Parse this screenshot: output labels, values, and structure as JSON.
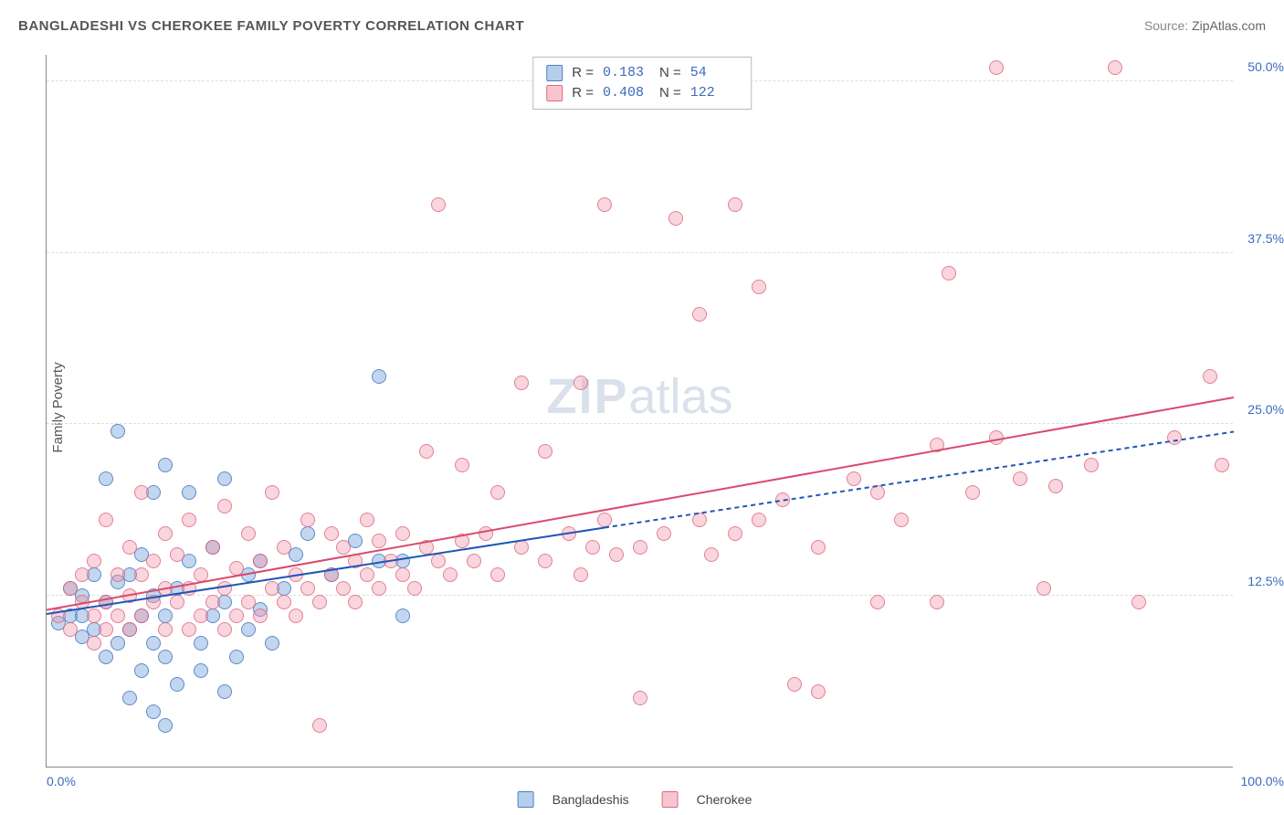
{
  "title": "BANGLADESHI VS CHEROKEE FAMILY POVERTY CORRELATION CHART",
  "source_label": "Source:",
  "source_value": "ZipAtlas.com",
  "watermark_zip": "ZIP",
  "watermark_atlas": "atlas",
  "ylabel": "Family Poverty",
  "chart": {
    "type": "scatter",
    "xlim": [
      0,
      100
    ],
    "ylim": [
      0,
      52
    ],
    "x_ticks": [
      {
        "value": 0,
        "label": "0.0%"
      },
      {
        "value": 100,
        "label": "100.0%"
      }
    ],
    "y_ticks": [
      {
        "value": 12.5,
        "label": "12.5%"
      },
      {
        "value": 25.0,
        "label": "25.0%"
      },
      {
        "value": 37.5,
        "label": "37.5%"
      },
      {
        "value": 50.0,
        "label": "50.0%"
      }
    ],
    "grid_color": "#dddddd",
    "axis_color": "#888888",
    "background_color": "#ffffff",
    "series": [
      {
        "name": "Bangladeshis",
        "color_fill": "rgba(120,165,220,0.45)",
        "color_stroke": "rgba(70,120,190,0.8)",
        "marker_radius": 8,
        "R": "0.183",
        "N": "54",
        "trend": {
          "x1": 0,
          "y1": 11.2,
          "x2": 47,
          "y2": 17.5,
          "x2_ext": 100,
          "y2_ext": 24.5,
          "color": "#1f56b5",
          "width": 2,
          "dash_ext": "5,4"
        },
        "points": [
          [
            1,
            10.5
          ],
          [
            2,
            11
          ],
          [
            2,
            13
          ],
          [
            3,
            9.5
          ],
          [
            3,
            11
          ],
          [
            3,
            12.5
          ],
          [
            4,
            10
          ],
          [
            4,
            14
          ],
          [
            5,
            8
          ],
          [
            5,
            12
          ],
          [
            5,
            21
          ],
          [
            6,
            9
          ],
          [
            6,
            13.5
          ],
          [
            6,
            24.5
          ],
          [
            7,
            5
          ],
          [
            7,
            10
          ],
          [
            7,
            14
          ],
          [
            8,
            7
          ],
          [
            8,
            11
          ],
          [
            8,
            15.5
          ],
          [
            9,
            4
          ],
          [
            9,
            9
          ],
          [
            9,
            12.5
          ],
          [
            9,
            20
          ],
          [
            10,
            3
          ],
          [
            10,
            8
          ],
          [
            10,
            11
          ],
          [
            10,
            22
          ],
          [
            11,
            6
          ],
          [
            11,
            13
          ],
          [
            12,
            15
          ],
          [
            12,
            20
          ],
          [
            13,
            7
          ],
          [
            13,
            9
          ],
          [
            14,
            11
          ],
          [
            14,
            16
          ],
          [
            15,
            5.5
          ],
          [
            15,
            12
          ],
          [
            15,
            21
          ],
          [
            16,
            8
          ],
          [
            17,
            10
          ],
          [
            17,
            14
          ],
          [
            18,
            11.5
          ],
          [
            18,
            15
          ],
          [
            19,
            9
          ],
          [
            20,
            13
          ],
          [
            21,
            15.5
          ],
          [
            22,
            17
          ],
          [
            24,
            14
          ],
          [
            26,
            16.5
          ],
          [
            28,
            15
          ],
          [
            28,
            28.5
          ],
          [
            30,
            11
          ],
          [
            30,
            15
          ]
        ]
      },
      {
        "name": "Cherokee",
        "color_fill": "rgba(240,150,170,0.40)",
        "color_stroke": "rgba(220,90,120,0.7)",
        "marker_radius": 8,
        "R": "0.408",
        "N": "122",
        "trend": {
          "x1": 0,
          "y1": 11.5,
          "x2": 100,
          "y2": 27,
          "color": "#d84a6d",
          "width": 2
        },
        "points": [
          [
            1,
            11
          ],
          [
            2,
            10
          ],
          [
            2,
            13
          ],
          [
            3,
            12
          ],
          [
            3,
            14
          ],
          [
            4,
            9
          ],
          [
            4,
            11
          ],
          [
            4,
            15
          ],
          [
            5,
            10
          ],
          [
            5,
            12
          ],
          [
            5,
            18
          ],
          [
            6,
            11
          ],
          [
            6,
            14
          ],
          [
            7,
            10
          ],
          [
            7,
            12.5
          ],
          [
            7,
            16
          ],
          [
            8,
            11
          ],
          [
            8,
            14
          ],
          [
            8,
            20
          ],
          [
            9,
            12
          ],
          [
            9,
            15
          ],
          [
            10,
            10
          ],
          [
            10,
            13
          ],
          [
            10,
            17
          ],
          [
            11,
            12
          ],
          [
            11,
            15.5
          ],
          [
            12,
            10
          ],
          [
            12,
            13
          ],
          [
            12,
            18
          ],
          [
            13,
            11
          ],
          [
            13,
            14
          ],
          [
            14,
            12
          ],
          [
            14,
            16
          ],
          [
            15,
            10
          ],
          [
            15,
            13
          ],
          [
            15,
            19
          ],
          [
            16,
            11
          ],
          [
            16,
            14.5
          ],
          [
            17,
            12
          ],
          [
            17,
            17
          ],
          [
            18,
            11
          ],
          [
            18,
            15
          ],
          [
            19,
            13
          ],
          [
            19,
            20
          ],
          [
            20,
            12
          ],
          [
            20,
            16
          ],
          [
            21,
            11
          ],
          [
            21,
            14
          ],
          [
            22,
            13
          ],
          [
            22,
            18
          ],
          [
            23,
            12
          ],
          [
            23,
            3
          ],
          [
            24,
            14
          ],
          [
            24,
            17
          ],
          [
            25,
            13
          ],
          [
            25,
            16
          ],
          [
            26,
            12
          ],
          [
            26,
            15
          ],
          [
            27,
            14
          ],
          [
            27,
            18
          ],
          [
            28,
            13
          ],
          [
            28,
            16.5
          ],
          [
            29,
            15
          ],
          [
            30,
            14
          ],
          [
            30,
            17
          ],
          [
            31,
            13
          ],
          [
            32,
            16
          ],
          [
            32,
            23
          ],
          [
            33,
            15
          ],
          [
            33,
            41
          ],
          [
            34,
            14
          ],
          [
            35,
            16.5
          ],
          [
            35,
            22
          ],
          [
            36,
            15
          ],
          [
            37,
            17
          ],
          [
            38,
            14
          ],
          [
            38,
            20
          ],
          [
            40,
            16
          ],
          [
            40,
            28
          ],
          [
            42,
            15
          ],
          [
            42,
            23
          ],
          [
            44,
            17
          ],
          [
            45,
            14
          ],
          [
            45,
            28
          ],
          [
            46,
            16
          ],
          [
            47,
            18
          ],
          [
            47,
            41
          ],
          [
            48,
            15.5
          ],
          [
            50,
            16
          ],
          [
            50,
            5
          ],
          [
            52,
            17
          ],
          [
            53,
            40
          ],
          [
            55,
            18
          ],
          [
            55,
            33
          ],
          [
            56,
            15.5
          ],
          [
            58,
            17
          ],
          [
            58,
            41
          ],
          [
            60,
            18
          ],
          [
            60,
            35
          ],
          [
            62,
            19.5
          ],
          [
            63,
            6
          ],
          [
            65,
            16
          ],
          [
            65,
            5.5
          ],
          [
            68,
            21
          ],
          [
            70,
            12
          ],
          [
            70,
            20
          ],
          [
            72,
            18
          ],
          [
            75,
            23.5
          ],
          [
            75,
            12
          ],
          [
            76,
            36
          ],
          [
            78,
            20
          ],
          [
            80,
            51
          ],
          [
            80,
            24
          ],
          [
            82,
            21
          ],
          [
            84,
            13
          ],
          [
            85,
            20.5
          ],
          [
            88,
            22
          ],
          [
            90,
            51
          ],
          [
            92,
            12
          ],
          [
            95,
            24
          ],
          [
            98,
            28.5
          ],
          [
            99,
            22
          ]
        ]
      }
    ]
  },
  "top_legend": {
    "rows": [
      {
        "series": 0,
        "r_label": "R =",
        "n_label": "N ="
      },
      {
        "series": 1,
        "r_label": "R =",
        "n_label": "N ="
      }
    ]
  },
  "bottom_legend": {
    "items": [
      {
        "series": 0
      },
      {
        "series": 1
      }
    ]
  }
}
